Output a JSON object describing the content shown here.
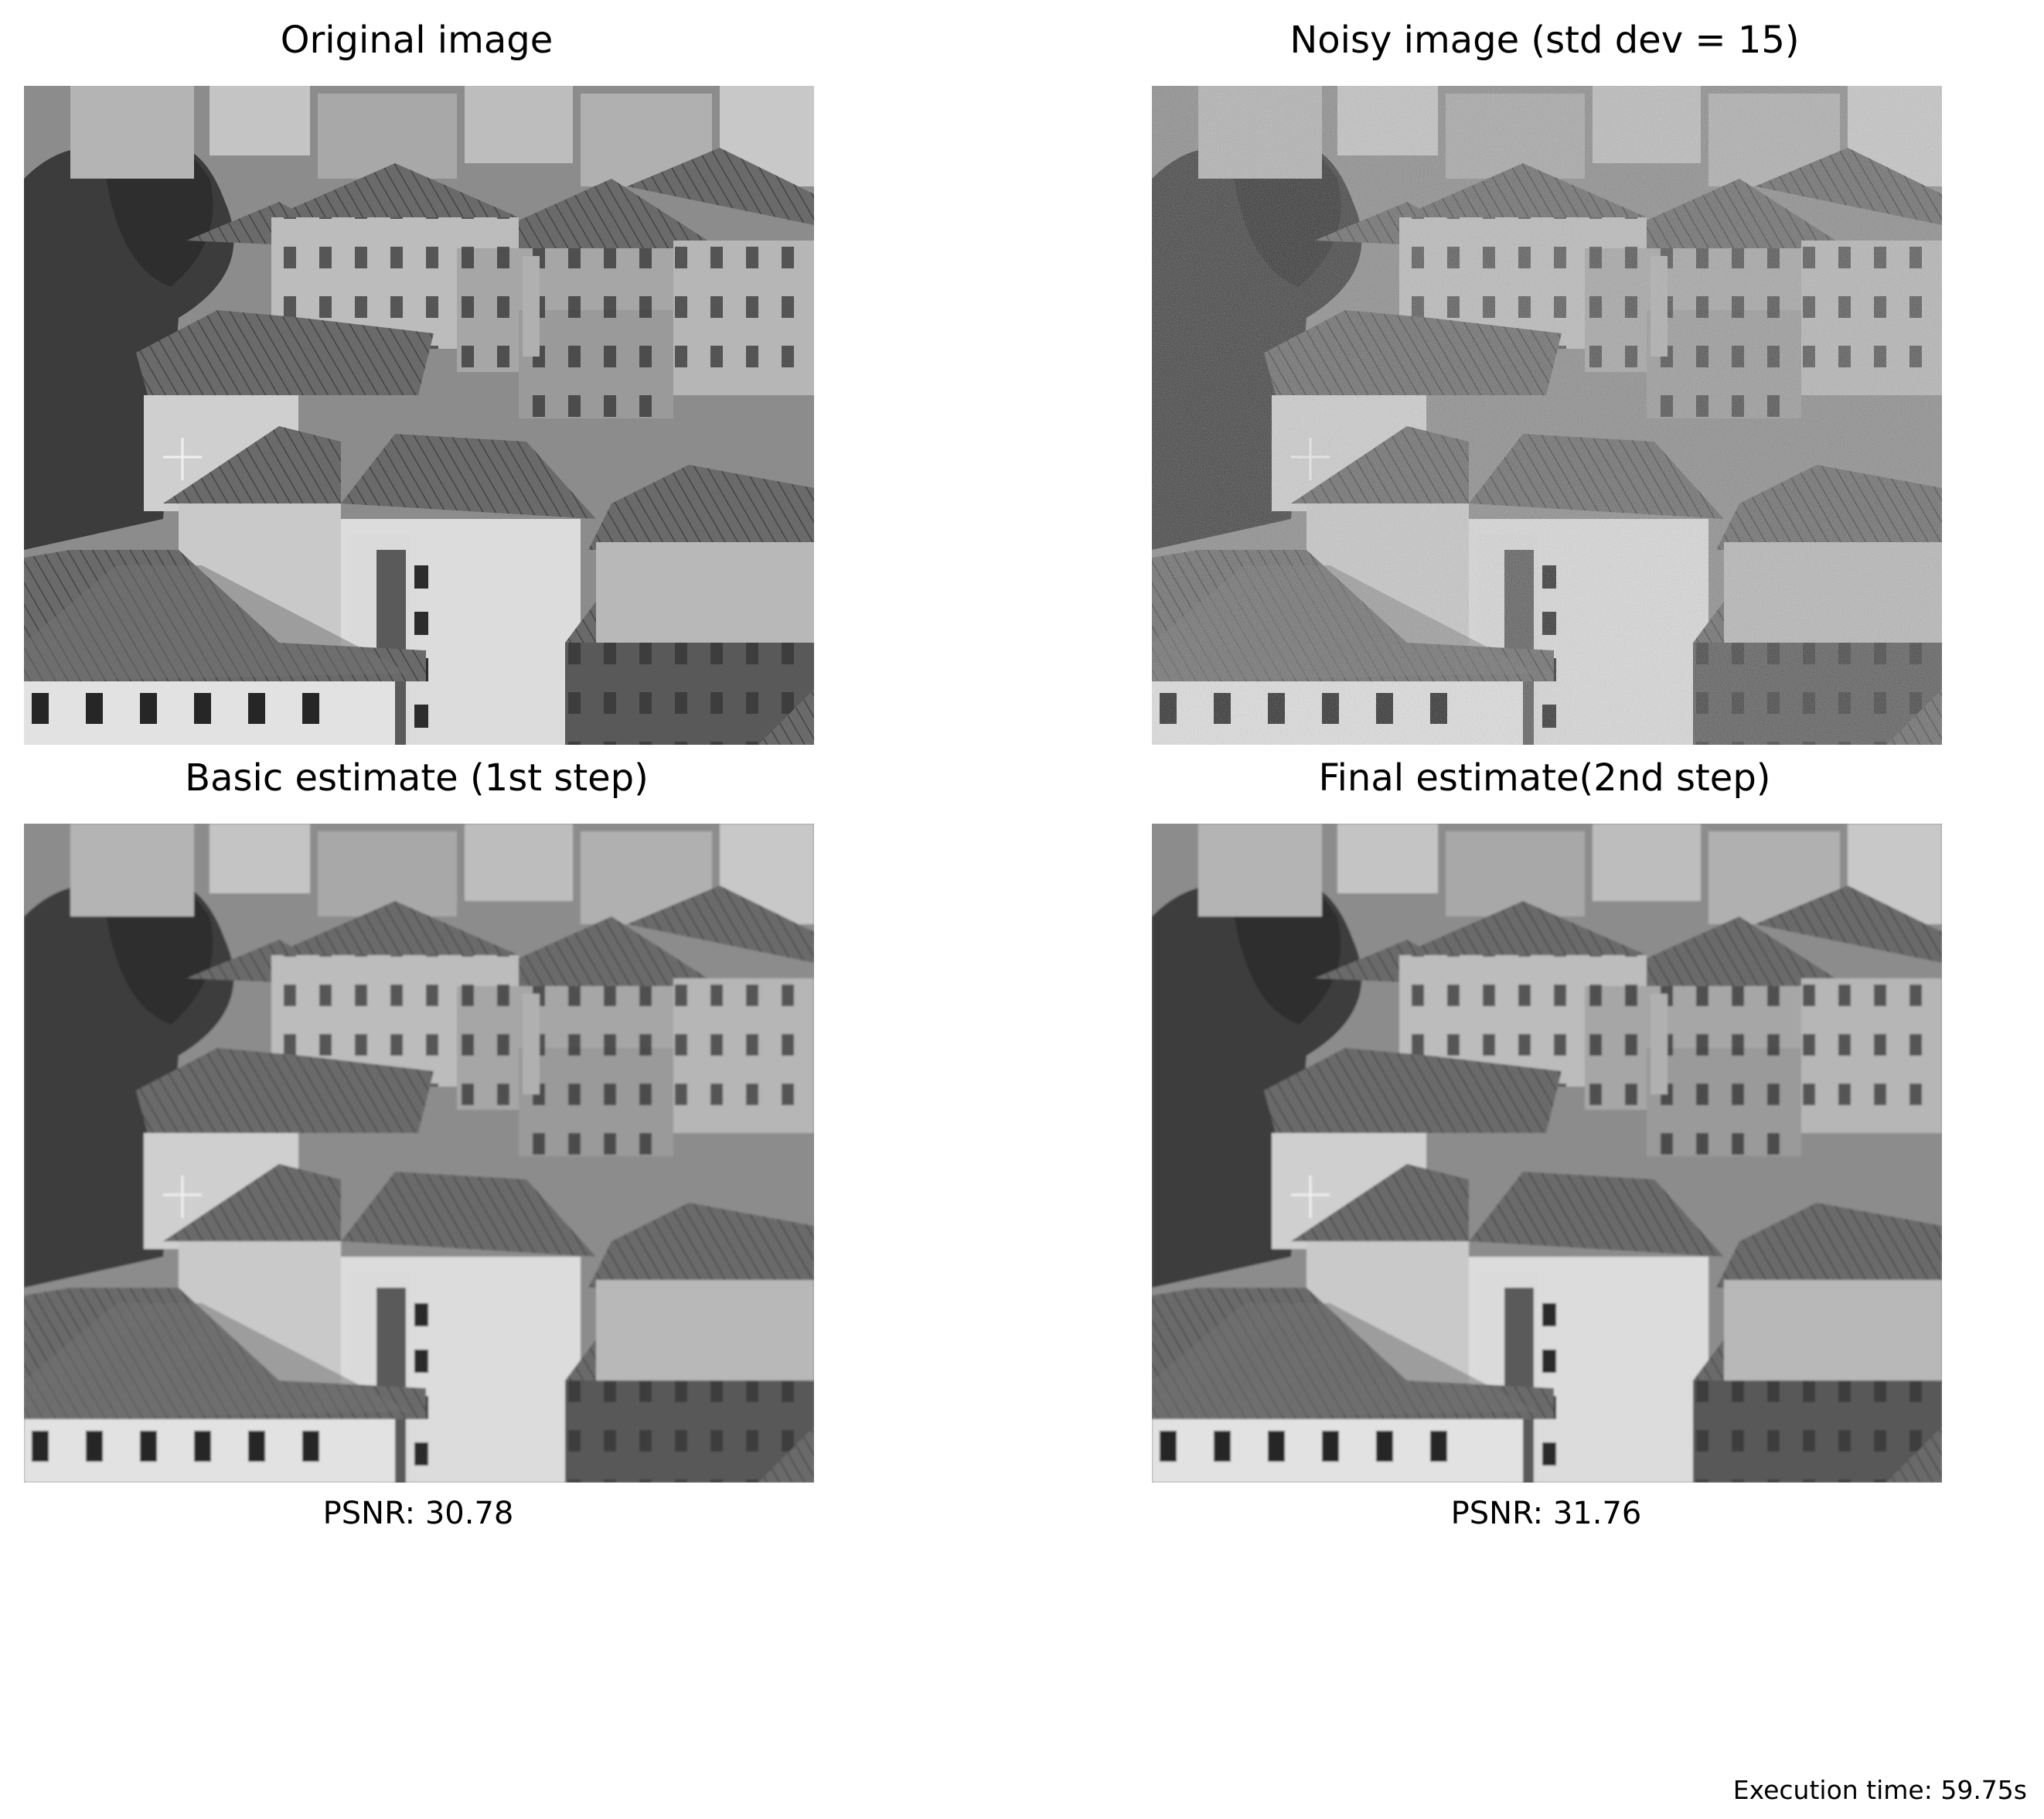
{
  "panels": [
    {
      "id": "original",
      "title": "Original image",
      "caption": "",
      "variant": "original"
    },
    {
      "id": "noisy",
      "title": "Noisy image (std dev = 15)",
      "caption": "",
      "variant": "noisy"
    },
    {
      "id": "basic",
      "title": "Basic estimate (1st step)",
      "caption": "PSNR: 30.78",
      "variant": "smooth"
    },
    {
      "id": "final",
      "title": "Final estimate(2nd step)",
      "caption": "PSNR: 31.76",
      "variant": "smooth"
    }
  ],
  "footer": {
    "execution_time": "Execution time: 59.75s"
  },
  "image_content": "grayscale aerial photo of city rooftops"
}
